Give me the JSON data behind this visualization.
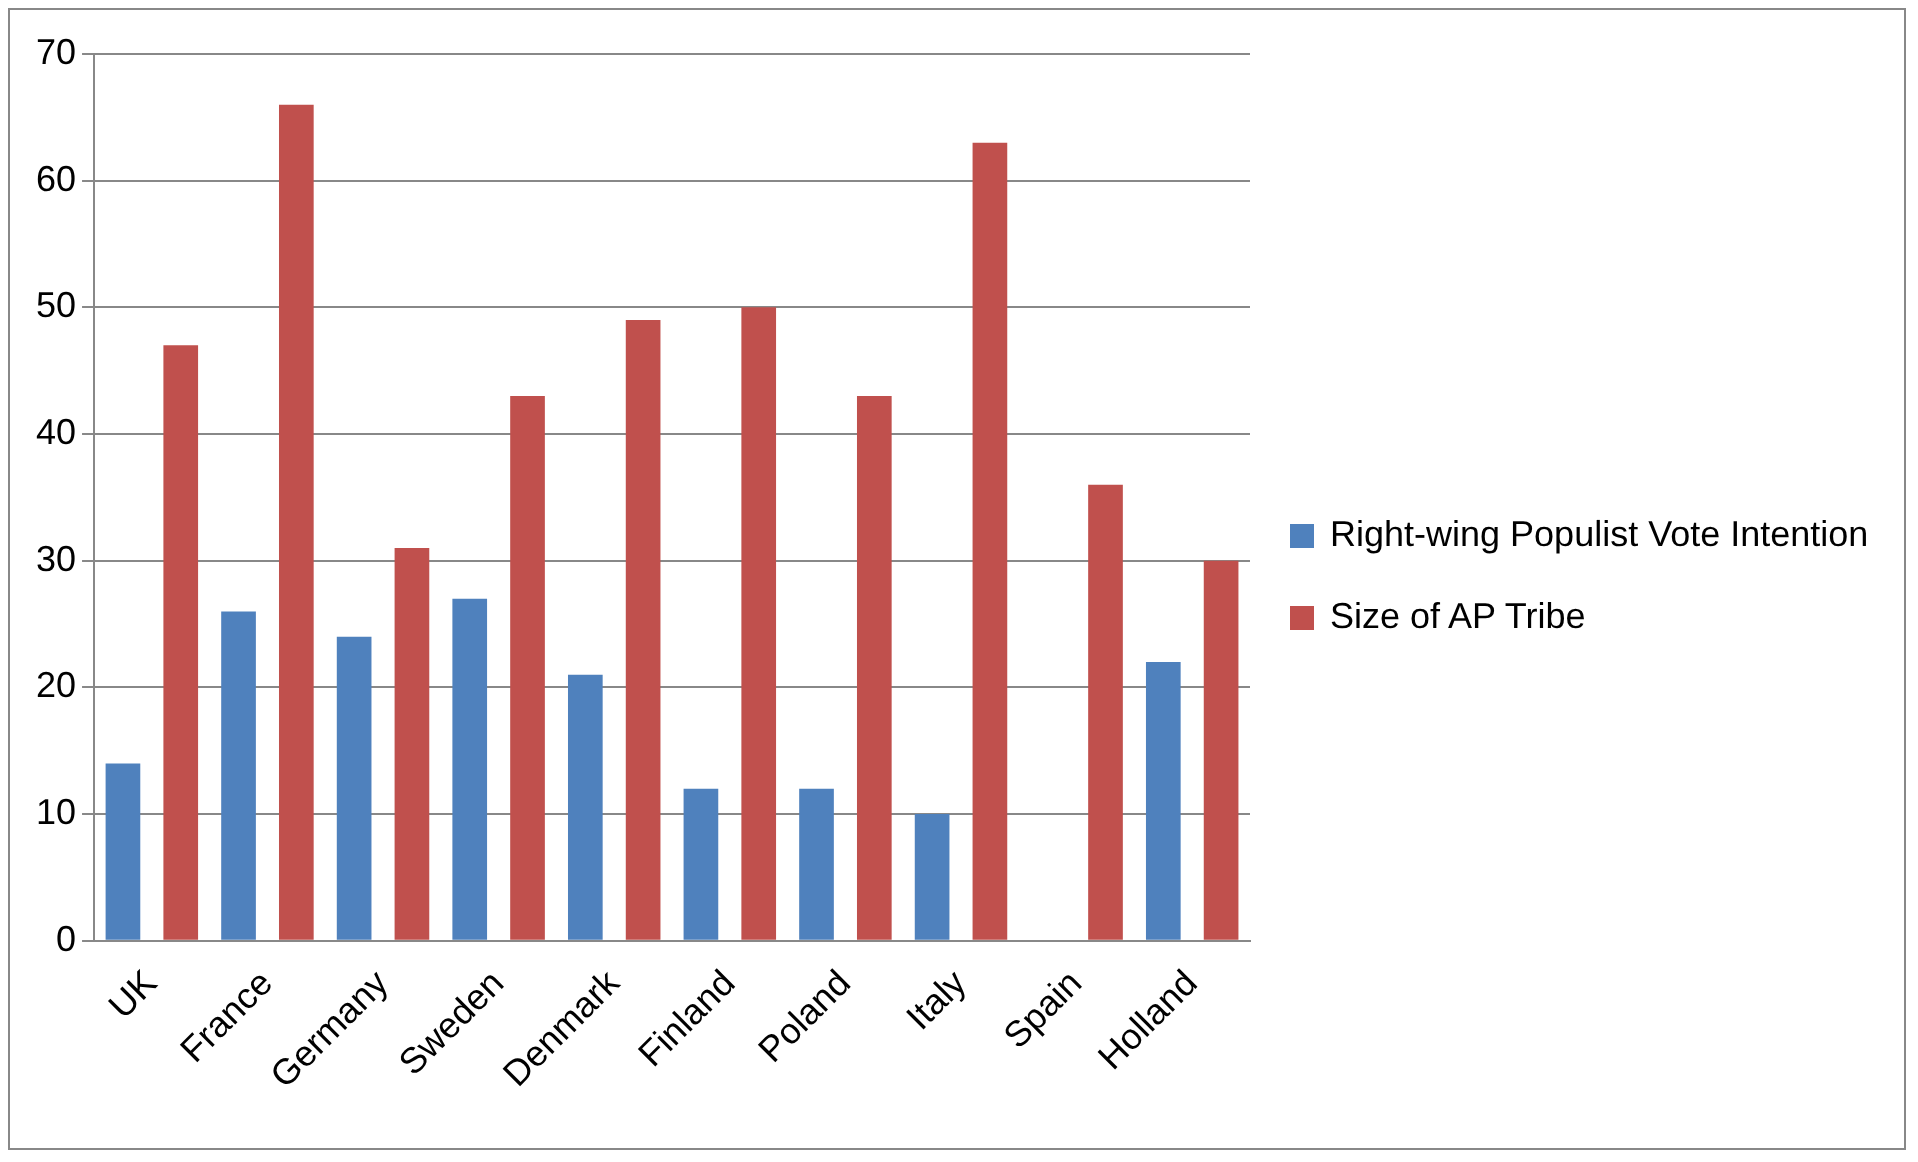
{
  "chart_data": {
    "type": "bar",
    "categories": [
      "UK",
      "France",
      "Germany",
      "Sweden",
      "Denmark",
      "Finland",
      "Poland",
      "Italy",
      "Spain",
      "Holland"
    ],
    "series": [
      {
        "name": "Right-wing Populist Vote Intention",
        "color": "#4f81bd",
        "values": [
          14,
          26,
          24,
          27,
          21,
          12,
          12,
          10,
          null,
          22
        ]
      },
      {
        "name": "Size of AP Tribe",
        "color": "#c0504d",
        "values": [
          47,
          66,
          31,
          43,
          49,
          50,
          43,
          63,
          36,
          30
        ]
      }
    ],
    "ylim": [
      0,
      70
    ],
    "yticks": [
      0,
      10,
      20,
      30,
      40,
      50,
      60,
      70
    ],
    "grid": "y",
    "legend": "right"
  }
}
